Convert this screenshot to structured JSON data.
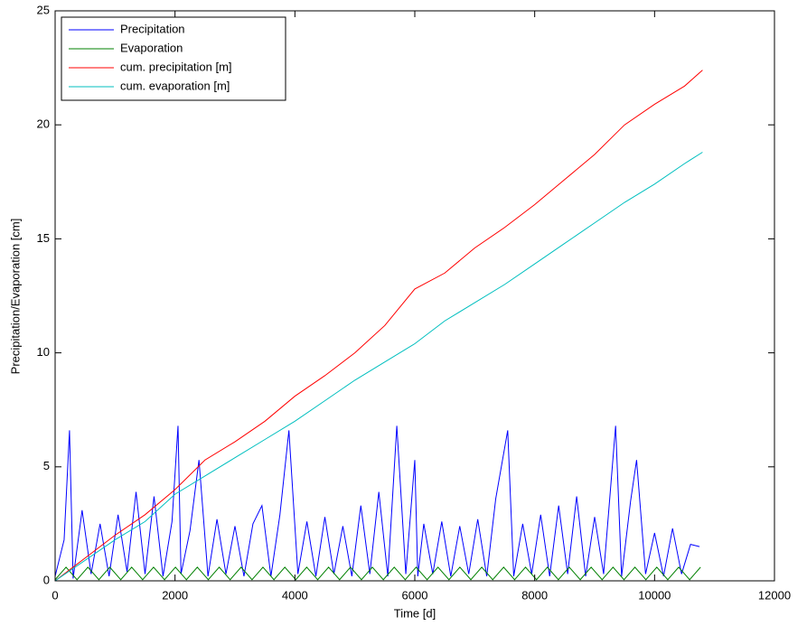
{
  "chart_data": {
    "type": "line",
    "xlabel": "Time [d]",
    "ylabel": "Precipitation/Evaporation [cm]",
    "xlim": [
      0,
      12000
    ],
    "xticks": [
      0,
      2000,
      4000,
      6000,
      8000,
      10000,
      12000
    ],
    "ylim": [
      0,
      25
    ],
    "yticks": [
      0,
      5,
      10,
      15,
      20,
      25
    ],
    "grid": false,
    "legend": "northwest",
    "series": [
      {
        "name": "Precipitation",
        "color": "#0000ff",
        "x": [
          0,
          150,
          240,
          300,
          450,
          600,
          750,
          900,
          1050,
          1200,
          1350,
          1500,
          1650,
          1800,
          1950,
          2050,
          2100,
          2250,
          2400,
          2550,
          2700,
          2850,
          3000,
          3150,
          3300,
          3450,
          3600,
          3750,
          3900,
          4050,
          4200,
          4350,
          4500,
          4650,
          4800,
          4950,
          5100,
          5250,
          5400,
          5550,
          5700,
          5850,
          6000,
          6050,
          6150,
          6300,
          6450,
          6600,
          6750,
          6900,
          7050,
          7200,
          7350,
          7550,
          7650,
          7800,
          7950,
          8100,
          8250,
          8400,
          8550,
          8700,
          8850,
          9000,
          9150,
          9350,
          9450,
          9600,
          9700,
          9850,
          10000,
          10150,
          10300,
          10450,
          10600,
          10750
        ],
        "values": [
          0.2,
          1.8,
          6.6,
          0.1,
          3.1,
          0.3,
          2.5,
          0.2,
          2.9,
          0.4,
          3.9,
          0.3,
          3.7,
          0.2,
          2.6,
          6.8,
          0.3,
          2.2,
          5.3,
          0.2,
          2.7,
          0.3,
          2.4,
          0.2,
          2.5,
          3.3,
          0.2,
          2.9,
          6.6,
          0.3,
          2.6,
          0.2,
          2.8,
          0.3,
          2.4,
          0.2,
          3.3,
          0.3,
          3.9,
          0.2,
          6.8,
          0.3,
          5.3,
          0.2,
          2.5,
          0.3,
          2.6,
          0.2,
          2.4,
          0.3,
          2.7,
          0.2,
          3.6,
          6.6,
          0.2,
          2.5,
          0.3,
          2.9,
          0.2,
          3.3,
          0.3,
          3.7,
          0.2,
          2.8,
          0.3,
          6.8,
          0.2,
          3.5,
          5.3,
          0.3,
          2.1,
          0.2,
          2.3,
          0.3,
          1.6,
          1.5
        ]
      },
      {
        "name": "Evaporation",
        "color": "#008000",
        "x": [
          0,
          182,
          365,
          547,
          730,
          912,
          1095,
          1277,
          1460,
          1642,
          1825,
          2007,
          2190,
          2372,
          2555,
          2737,
          2920,
          3102,
          3285,
          3467,
          3650,
          3832,
          4015,
          4197,
          4380,
          4562,
          4745,
          4927,
          5110,
          5292,
          5475,
          5657,
          5840,
          6022,
          6205,
          6387,
          6570,
          6752,
          6935,
          7117,
          7300,
          7482,
          7665,
          7847,
          8030,
          8212,
          8395,
          8577,
          8760,
          8942,
          9125,
          9307,
          9490,
          9672,
          9855,
          10037,
          10220,
          10402,
          10585,
          10767
        ],
        "values": [
          0.05,
          0.6,
          0.05,
          0.6,
          0.05,
          0.6,
          0.05,
          0.6,
          0.05,
          0.6,
          0.05,
          0.6,
          0.05,
          0.6,
          0.05,
          0.6,
          0.05,
          0.6,
          0.05,
          0.6,
          0.05,
          0.6,
          0.05,
          0.6,
          0.05,
          0.6,
          0.05,
          0.6,
          0.05,
          0.6,
          0.05,
          0.6,
          0.05,
          0.6,
          0.05,
          0.6,
          0.05,
          0.6,
          0.05,
          0.6,
          0.05,
          0.6,
          0.05,
          0.6,
          0.05,
          0.6,
          0.05,
          0.6,
          0.05,
          0.6,
          0.05,
          0.6,
          0.05,
          0.6,
          0.05,
          0.6,
          0.05,
          0.6,
          0.05,
          0.6
        ]
      },
      {
        "name": "cum. precipitation [m]",
        "color": "#ff0000",
        "x": [
          0,
          500,
          1000,
          1500,
          2000,
          2500,
          3000,
          3500,
          4000,
          4500,
          5000,
          5500,
          6000,
          6500,
          7000,
          7500,
          8000,
          8500,
          9000,
          9500,
          10000,
          10500,
          10800
        ],
        "values": [
          0,
          1.0,
          2.0,
          2.9,
          4.0,
          5.3,
          6.1,
          7.0,
          8.1,
          9.0,
          10.0,
          11.2,
          12.8,
          13.5,
          14.6,
          15.5,
          16.5,
          17.6,
          18.7,
          20.0,
          20.9,
          21.7,
          22.4
        ]
      },
      {
        "name": "cum. evaporation [m]",
        "color": "#00bfbf",
        "x": [
          0,
          1000,
          1500,
          2000,
          2500,
          3000,
          3500,
          4000,
          4500,
          5000,
          5500,
          6000,
          6500,
          7000,
          7500,
          8000,
          8500,
          9000,
          9500,
          10000,
          10500,
          10800
        ],
        "values": [
          0,
          1.8,
          2.6,
          3.8,
          4.6,
          5.4,
          6.2,
          7.0,
          7.9,
          8.8,
          9.6,
          10.4,
          11.4,
          12.2,
          13.0,
          13.9,
          14.8,
          15.7,
          16.6,
          17.4,
          18.3,
          18.8
        ]
      }
    ]
  }
}
